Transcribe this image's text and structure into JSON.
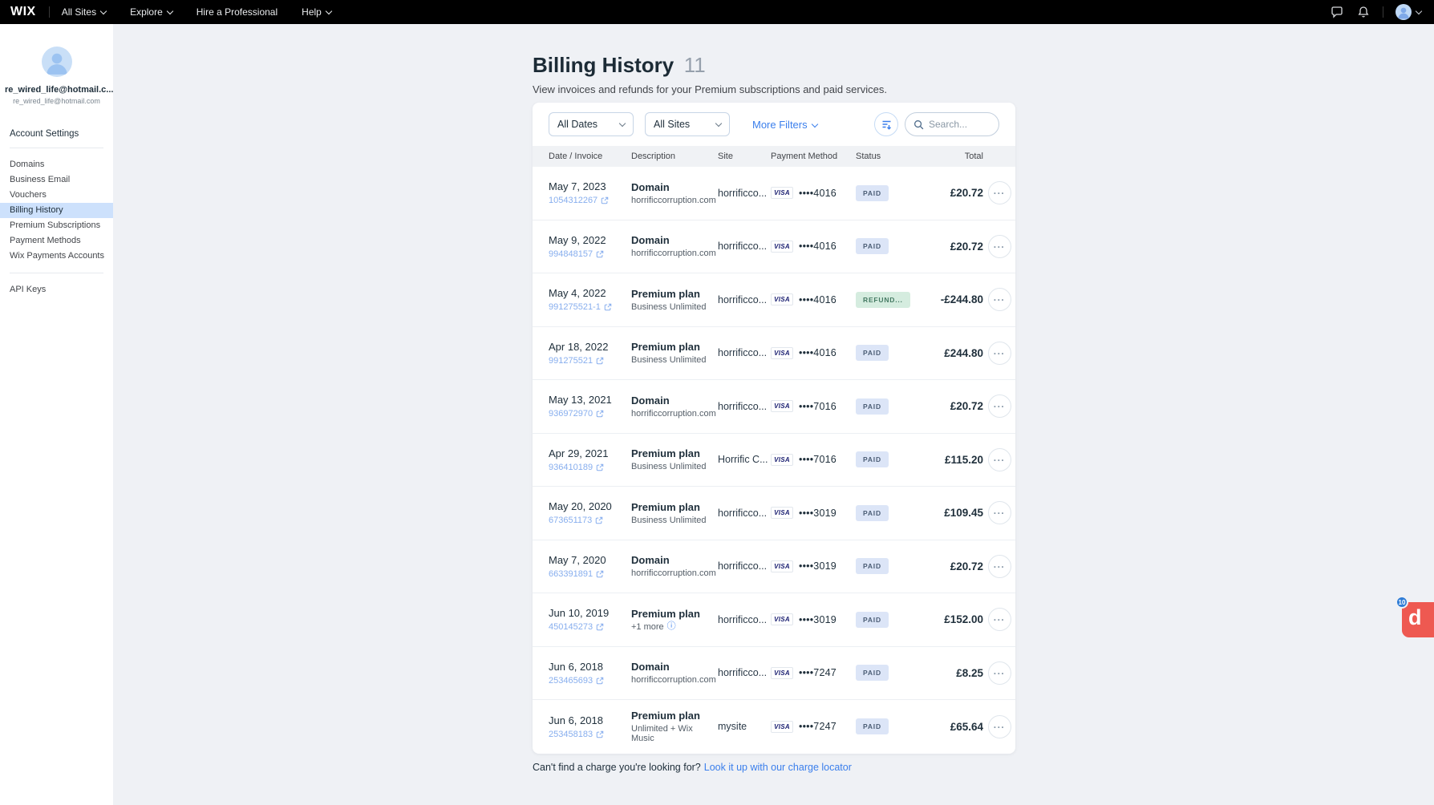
{
  "colors": {
    "topbar_bg": "#000000",
    "page_bg": "#EFF1F5",
    "accent_blue": "#3B7FEC",
    "invoice_link_blue": "#87AEEE",
    "active_sidebar_item_bg": "#CDE1FC",
    "paid_badge_bg": "#DCE5F7",
    "paid_badge_text": "#4C5E76",
    "refund_badge_bg": "#D5ECDF",
    "refund_badge_text": "#457A63",
    "visa_blue": "#1A1F71",
    "dock_red": "#EE5951",
    "dock_badge_blue": "#2E7CD6"
  },
  "topbar": {
    "logo": "WIX",
    "menus": [
      {
        "label": "All Sites",
        "chevron": true
      },
      {
        "label": "Explore",
        "chevron": true
      },
      {
        "label": "Hire a Professional",
        "chevron": false
      },
      {
        "label": "Help",
        "chevron": true
      }
    ]
  },
  "sidebar": {
    "account_name": "re_wired_life@hotmail.c...",
    "account_email": "re_wired_life@hotmail.com",
    "section_title": "Account Settings",
    "items": [
      {
        "label": "Domains",
        "active": false
      },
      {
        "label": "Business Email",
        "active": false
      },
      {
        "label": "Vouchers",
        "active": false
      },
      {
        "label": "Billing History",
        "active": true
      },
      {
        "label": "Premium Subscriptions",
        "active": false
      },
      {
        "label": "Payment Methods",
        "active": false
      },
      {
        "label": "Wix Payments Accounts",
        "active": false
      }
    ],
    "secondary_items": [
      {
        "label": "API Keys",
        "active": false
      }
    ]
  },
  "page": {
    "title": "Billing History",
    "count": "11",
    "subtitle": "View invoices and refunds for your Premium subscriptions and paid services.",
    "footer_text": "Can't find a charge you're looking for?",
    "footer_link": "Look it up with our charge locator"
  },
  "filters": {
    "date_filter_value": "All Dates",
    "site_filter_value": "All Sites",
    "more_filters_label": "More Filters",
    "search_placeholder": "Search..."
  },
  "table": {
    "columns": [
      "Date / Invoice",
      "Description",
      "Site",
      "Payment Method",
      "Status",
      "Total"
    ],
    "card_brand": "VISA",
    "rows": [
      {
        "date": "May 7, 2023",
        "invoice": "1054312267",
        "description": "Domain",
        "description_sub": "horrificcorruption.com",
        "info_icon": false,
        "site": "horrificco...",
        "card": "••••4016",
        "status": "PAID",
        "status_type": "paid",
        "total": "£20.72"
      },
      {
        "date": "May 9, 2022",
        "invoice": "994848157",
        "description": "Domain",
        "description_sub": "horrificcorruption.com",
        "info_icon": false,
        "site": "horrificco...",
        "card": "••••4016",
        "status": "PAID",
        "status_type": "paid",
        "total": "£20.72"
      },
      {
        "date": "May 4, 2022",
        "invoice": "991275521-1",
        "description": "Premium plan",
        "description_sub": "Business Unlimited",
        "info_icon": false,
        "site": "horrificco...",
        "card": "••••4016",
        "status": "REFUND...",
        "status_type": "refund",
        "total": "-£244.80"
      },
      {
        "date": "Apr 18, 2022",
        "invoice": "991275521",
        "description": "Premium plan",
        "description_sub": "Business Unlimited",
        "info_icon": false,
        "site": "horrificco...",
        "card": "••••4016",
        "status": "PAID",
        "status_type": "paid",
        "total": "£244.80"
      },
      {
        "date": "May 13, 2021",
        "invoice": "936972970",
        "description": "Domain",
        "description_sub": "horrificcorruption.com",
        "info_icon": false,
        "site": "horrificco...",
        "card": "••••7016",
        "status": "PAID",
        "status_type": "paid",
        "total": "£20.72"
      },
      {
        "date": "Apr 29, 2021",
        "invoice": "936410189",
        "description": "Premium plan",
        "description_sub": "Business Unlimited",
        "info_icon": false,
        "site": "Horrific C...",
        "card": "••••7016",
        "status": "PAID",
        "status_type": "paid",
        "total": "£115.20"
      },
      {
        "date": "May 20, 2020",
        "invoice": "673651173",
        "description": "Premium plan",
        "description_sub": "Business Unlimited",
        "info_icon": false,
        "site": "horrificco...",
        "card": "••••3019",
        "status": "PAID",
        "status_type": "paid",
        "total": "£109.45"
      },
      {
        "date": "May 7, 2020",
        "invoice": "663391891",
        "description": "Domain",
        "description_sub": "horrificcorruption.com",
        "info_icon": false,
        "site": "horrificco...",
        "card": "••••3019",
        "status": "PAID",
        "status_type": "paid",
        "total": "£20.72"
      },
      {
        "date": "Jun 10, 2019",
        "invoice": "450145273",
        "description": "Premium plan",
        "description_sub": "+1 more",
        "info_icon": true,
        "site": "horrificco...",
        "card": "••••3019",
        "status": "PAID",
        "status_type": "paid",
        "total": "£152.00"
      },
      {
        "date": "Jun 6, 2018",
        "invoice": "253465693",
        "description": "Domain",
        "description_sub": "horrificcorruption.com",
        "info_icon": false,
        "site": "horrificco...",
        "card": "••••7247",
        "status": "PAID",
        "status_type": "paid",
        "total": "£8.25"
      },
      {
        "date": "Jun 6, 2018",
        "invoice": "253458183",
        "description": "Premium plan",
        "description_sub": "Unlimited + Wix Music",
        "info_icon": false,
        "site": "mysite",
        "card": "••••7247",
        "status": "PAID",
        "status_type": "paid",
        "total": "£65.64"
      }
    ]
  },
  "dock_widget": {
    "badge_count": "10",
    "letter": "d"
  }
}
